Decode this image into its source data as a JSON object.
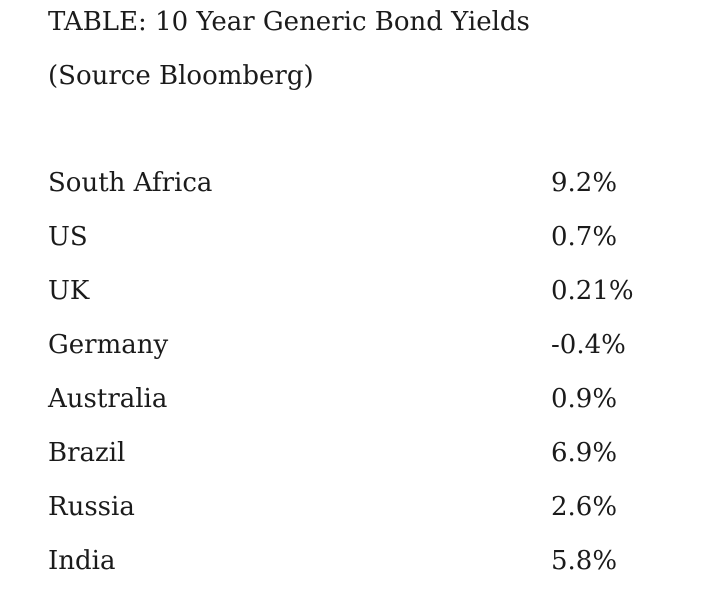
{
  "header": {
    "title": "TABLE: 10 Year Generic Bond Yields",
    "source": "(Source Bloomberg)"
  },
  "colors": {
    "text": "#1b1b1b",
    "background": "#ffffff"
  },
  "chart_data": {
    "type": "table",
    "title": "TABLE: 10 Year Generic Bond Yields",
    "subtitle": "(Source Bloomberg)",
    "rows": [
      [
        "South Africa",
        "9.2%"
      ],
      [
        "US",
        "0.7%"
      ],
      [
        "UK",
        "0.21%"
      ],
      [
        "Germany",
        "-0.4%"
      ],
      [
        "Australia",
        "0.9%"
      ],
      [
        "Brazil",
        "6.9%"
      ],
      [
        "Russia",
        "2.6%"
      ],
      [
        "India",
        "5.8%"
      ]
    ],
    "values_numeric_percent": [
      9.2,
      0.7,
      0.21,
      -0.4,
      0.9,
      6.9,
      2.6,
      5.8
    ],
    "layout": {
      "columns_visible_headers": false,
      "label_align": "left",
      "value_align": "left"
    }
  }
}
